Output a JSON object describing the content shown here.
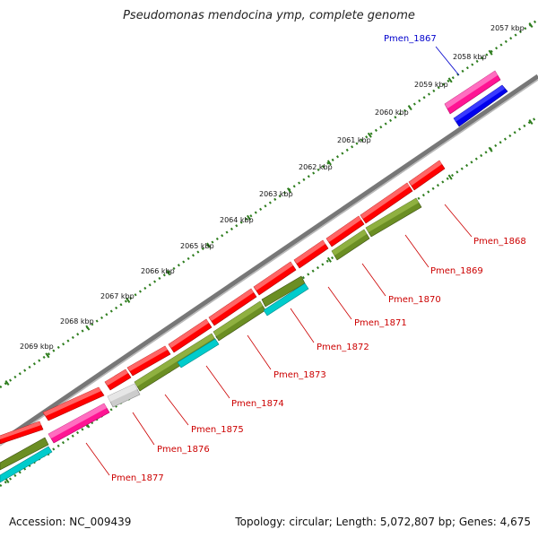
{
  "title": "Pseudomonas mendocina ymp, complete genome",
  "footer": {
    "accession": "Accession: NC_009439",
    "info": "Topology: circular; Length: 5,072,807 bp; Genes: 4,675"
  },
  "colors": {
    "backbone": "#888888",
    "tick": "#2e7d1e",
    "gene_label_red": "#cc0000",
    "gene_label_blue": "#0000cc",
    "red": "#ff0000",
    "magenta": "#ff1493",
    "blue": "#0000ee",
    "olive": "#6b8e23",
    "cyan": "#00cccc",
    "grey": "#cccccc"
  },
  "scale_labels": [
    "2057 kbp",
    "2058 kbp",
    "2059 kbp",
    "2060 kbp",
    "2061 kbp",
    "2062 kbp",
    "2063 kbp",
    "2064 kbp",
    "2065 kbp",
    "2066 kbp",
    "2067 kbp",
    "2068 kbp",
    "2069 kbp"
  ],
  "gene_labels": [
    {
      "name": "Pmen_1867",
      "color": "blue"
    },
    {
      "name": "Pmen_1868",
      "color": "red"
    },
    {
      "name": "Pmen_1869",
      "color": "red"
    },
    {
      "name": "Pmen_1870",
      "color": "red"
    },
    {
      "name": "Pmen_1871",
      "color": "red"
    },
    {
      "name": "Pmen_1872",
      "color": "red"
    },
    {
      "name": "Pmen_1873",
      "color": "red"
    },
    {
      "name": "Pmen_1874",
      "color": "red"
    },
    {
      "name": "Pmen_1875",
      "color": "red"
    },
    {
      "name": "Pmen_1876",
      "color": "red"
    },
    {
      "name": "Pmen_1877",
      "color": "red"
    }
  ]
}
